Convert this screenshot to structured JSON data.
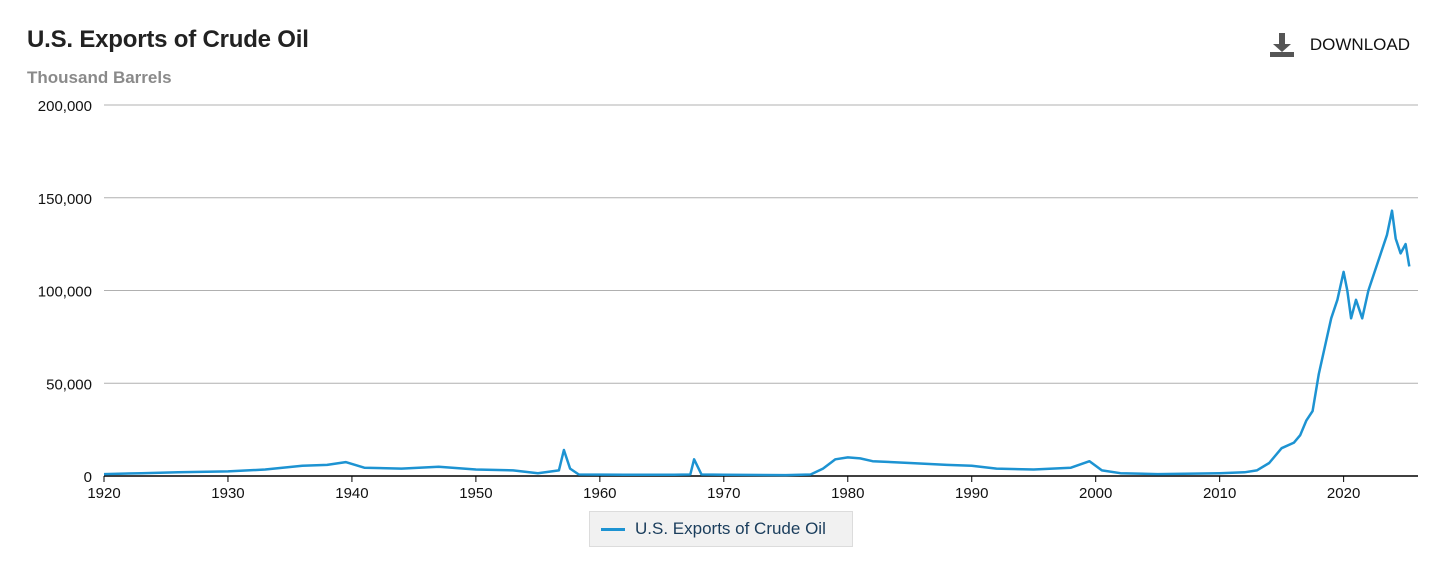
{
  "header": {
    "title": "U.S. Exports of Crude Oil",
    "subtitle": "Thousand Barrels",
    "download_label": "DOWNLOAD"
  },
  "colors": {
    "series": "#1d93d2",
    "grid": "#b0b0b0",
    "axis": "#000000"
  },
  "chart_data": {
    "type": "line",
    "title": "U.S. Exports of Crude Oil",
    "ylabel": "Thousand Barrels",
    "xlim": [
      1920,
      2026
    ],
    "ylim": [
      0,
      200000
    ],
    "grid": true,
    "legend_position": "bottom-center",
    "x_ticks": [
      1920,
      1930,
      1940,
      1950,
      1960,
      1970,
      1980,
      1990,
      2000,
      2010,
      2020
    ],
    "y_ticks": [
      0,
      50000,
      100000,
      150000,
      200000
    ],
    "x_tick_labels": [
      "1920",
      "1930",
      "1940",
      "1950",
      "1960",
      "1970",
      "1980",
      "1990",
      "2000",
      "2010",
      "2020"
    ],
    "y_tick_labels": [
      "0",
      "50,000",
      "100,000",
      "150,000",
      "200,000"
    ],
    "series": [
      {
        "name": "U.S. Exports of Crude Oil",
        "x": [
          1920,
          1923,
          1926,
          1930,
          1933,
          1936,
          1938,
          1939.5,
          1941,
          1944,
          1947,
          1950,
          1953,
          1955,
          1956.7,
          1957.1,
          1957.6,
          1958.3,
          1962,
          1966,
          1967.3,
          1967.6,
          1968.2,
          1970,
          1975,
          1977,
          1978,
          1979,
          1980,
          1981,
          1982,
          1985,
          1988,
          1990,
          1992,
          1995,
          1998,
          1999.5,
          2000.5,
          2002,
          2005,
          2010,
          2012,
          2013,
          2014,
          2015,
          2016,
          2016.5,
          2017,
          2017.5,
          2018,
          2018.5,
          2019,
          2019.5,
          2020,
          2020.3,
          2020.6,
          2021,
          2021.5,
          2022,
          2022.5,
          2023,
          2023.5,
          2023.9,
          2024.2,
          2024.6,
          2025,
          2025.3
        ],
        "y": [
          1000,
          1500,
          2000,
          2500,
          3500,
          5500,
          6000,
          7500,
          4500,
          4000,
          5000,
          3500,
          3000,
          1500,
          3000,
          14000,
          4000,
          800,
          700,
          700,
          800,
          9000,
          800,
          700,
          500,
          800,
          4000,
          9000,
          10000,
          9500,
          8000,
          7000,
          6000,
          5500,
          4000,
          3500,
          4500,
          8000,
          3000,
          1500,
          1000,
          1500,
          2000,
          3000,
          7000,
          15000,
          18000,
          22000,
          30000,
          35000,
          55000,
          70000,
          85000,
          95000,
          110000,
          100000,
          85000,
          95000,
          85000,
          100000,
          110000,
          120000,
          130000,
          143000,
          128000,
          120000,
          125000,
          113000
        ]
      }
    ]
  }
}
